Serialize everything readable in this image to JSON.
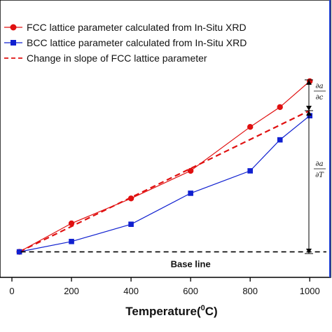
{
  "chart_data": {
    "type": "line",
    "title": "",
    "xlabel": "Temperature(",
    "xlabel_sup": "0",
    "xlabel_end": "C)",
    "ylabel": "",
    "xlim": [
      -40,
      1070
    ],
    "ylim": [
      0,
      100
    ],
    "xticks": [
      0,
      200,
      400,
      600,
      800,
      1000
    ],
    "xtick_labels": [
      "0",
      "200",
      "400",
      "600",
      "800",
      "1000"
    ],
    "grid": false,
    "legend_position": "top",
    "series": [
      {
        "name": "FCC lattice parameter calculated from In-Situ XRD",
        "marker": "circle",
        "line": "solid",
        "color": "#e01010",
        "x": [
          25,
          200,
          400,
          600,
          800,
          900,
          1000
        ],
        "y": [
          1,
          17.5,
          32,
          48,
          73.5,
          85,
          100
        ]
      },
      {
        "name": "BCC lattice parameter calculated from In-Situ XRD",
        "marker": "square",
        "line": "solid",
        "color": "#1020d0",
        "x": [
          25,
          200,
          400,
          600,
          800,
          900,
          1000
        ],
        "y": [
          1,
          7,
          17,
          35,
          48,
          66,
          80
        ]
      },
      {
        "name": "Change in slope of FCC lattice parameter",
        "marker": "none",
        "line": "dashed",
        "color": "#e01010",
        "x": [
          25,
          1000
        ],
        "y": [
          1,
          83
        ]
      }
    ],
    "annotations": {
      "base_line_label": "Base line",
      "base_line_y": 1,
      "frac1_num": "∂a",
      "frac1_den": "∂c",
      "frac2_num": "∂a",
      "frac2_den": "∂T"
    }
  }
}
